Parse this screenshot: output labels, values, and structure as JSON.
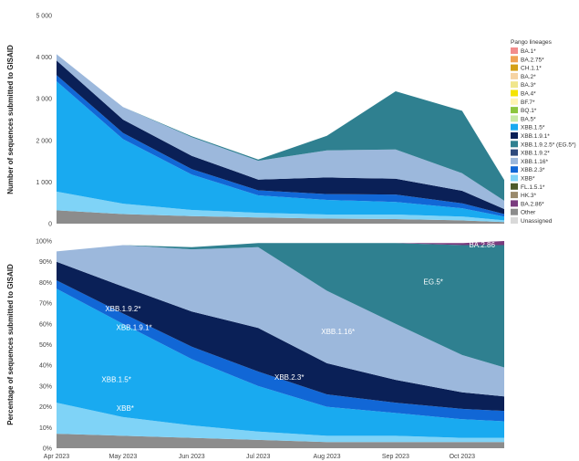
{
  "chart_data": [
    {
      "type": "area",
      "stacked": true,
      "ylabel": "Number of sequences submitted to GISAID",
      "ylim": [
        0,
        5000
      ],
      "yticks": [
        "0",
        "1 000",
        "2 000",
        "3 000",
        "4 000",
        "5 000"
      ],
      "x": [
        0,
        30,
        61,
        91,
        122,
        153,
        183,
        202
      ],
      "series": [
        {
          "name": "Other",
          "values": [
            320,
            230,
            180,
            150,
            120,
            110,
            80,
            40
          ]
        },
        {
          "name": "XBB*",
          "values": [
            450,
            250,
            150,
            110,
            100,
            110,
            90,
            40
          ]
        },
        {
          "name": "XBB.1.5*",
          "values": [
            2650,
            1550,
            850,
            420,
            350,
            300,
            200,
            90
          ]
        },
        {
          "name": "XBB.2.3*",
          "values": [
            150,
            150,
            130,
            120,
            140,
            180,
            120,
            60
          ]
        },
        {
          "name": "XBB.1.9.1*",
          "values": [
            350,
            320,
            320,
            260,
            400,
            380,
            300,
            120
          ]
        },
        {
          "name": "XBB.1.16*",
          "values": [
            150,
            300,
            450,
            450,
            650,
            700,
            420,
            200
          ]
        },
        {
          "name": "EG.5*",
          "values": [
            0,
            0,
            20,
            30,
            350,
            1400,
            1500,
            500
          ]
        }
      ]
    },
    {
      "type": "area",
      "stacked": true,
      "ylabel": "Percentage of sequences submitted to GISAID",
      "ylim": [
        0,
        100
      ],
      "yticks": [
        "0%",
        "10%",
        "20%",
        "30%",
        "40%",
        "50%",
        "60%",
        "70%",
        "80%",
        "90%",
        "100%"
      ],
      "xticks": [
        "Apr 2023",
        "May 2023",
        "Jun 2023",
        "Jul 2023",
        "Aug 2023",
        "Sep 2023",
        "Oct 2023"
      ],
      "x": [
        0,
        30,
        61,
        91,
        122,
        153,
        183,
        202
      ],
      "series": [
        {
          "name": "Other",
          "values": [
            7,
            6,
            5,
            4,
            3,
            3,
            3,
            3
          ]
        },
        {
          "name": "XBB*",
          "values": [
            15,
            9,
            6,
            4,
            3,
            3,
            2,
            2
          ]
        },
        {
          "name": "XBB.1.5*",
          "values": [
            55,
            45,
            32,
            22,
            14,
            11,
            9,
            8
          ]
        },
        {
          "name": "XBB.2.3*",
          "values": [
            4,
            5,
            6,
            7,
            6,
            5,
            5,
            5
          ]
        },
        {
          "name": "XBB.1.9.1*",
          "values": [
            9,
            13,
            17,
            21,
            15,
            11,
            8,
            7
          ]
        },
        {
          "name": "XBB.1.16*",
          "values": [
            5,
            20,
            30,
            39,
            35,
            27,
            18,
            14
          ]
        },
        {
          "name": "EG.5*",
          "values": [
            0,
            0,
            1,
            2,
            23,
            39,
            53,
            59
          ]
        },
        {
          "name": "BA.2.86",
          "values": [
            0,
            0,
            0,
            0,
            0,
            0,
            1,
            2
          ]
        }
      ],
      "annotations": [
        "XBB.1.9.2*",
        "XBB.1.9.1*",
        "XBB.1.16*",
        "EG.5*",
        "XBB.1.5*",
        "XBB.2.3*",
        "XBB*",
        "BA.2.86"
      ]
    }
  ],
  "legend": {
    "title": "Pango lineages",
    "items": [
      {
        "label": "BA.1*",
        "color": "#f28c8c"
      },
      {
        "label": "BA.2.75*",
        "color": "#f0a254"
      },
      {
        "label": "CH.1.1*",
        "color": "#d4a017"
      },
      {
        "label": "BA.2*",
        "color": "#f6d3a3"
      },
      {
        "label": "BA.3*",
        "color": "#f0e68c"
      },
      {
        "label": "BA.4*",
        "color": "#f5e400"
      },
      {
        "label": "BF.7*",
        "color": "#fff4b3"
      },
      {
        "label": "BQ.1*",
        "color": "#8cc63f"
      },
      {
        "label": "BA.5*",
        "color": "#c7e9a6"
      },
      {
        "label": "XBB.1.5*",
        "color": "#19aaf0"
      },
      {
        "label": "XBB.1.9.1*",
        "color": "#0a2057"
      },
      {
        "label": "XBB.1.9.2.5* (EG.5*)",
        "color": "#2f8090"
      },
      {
        "label": "XBB.1.9.2*",
        "color": "#2e4a7d"
      },
      {
        "label": "XBB.1.16*",
        "color": "#9cb8dc"
      },
      {
        "label": "XBB.2.3*",
        "color": "#1167d6"
      },
      {
        "label": "XBB*",
        "color": "#7fd3f7"
      },
      {
        "label": "FL.1.5.1*",
        "color": "#4d5a2a"
      },
      {
        "label": "HK.3*",
        "color": "#9a8a6c"
      },
      {
        "label": "BA.2.86*",
        "color": "#7a3c7e"
      },
      {
        "label": "Other",
        "color": "#8c8c8c"
      },
      {
        "label": "Unassigned",
        "color": "#d9d9d9"
      }
    ]
  },
  "colors": {
    "Other": "#8c8c8c",
    "Unassigned": "#d9d9d9",
    "BA.2*": "#f6d3a3",
    "BA.2.75*": "#f0a254",
    "BF.7*": "#fff4b3",
    "BQ.1*": "#8cc63f",
    "XBB*": "#7fd3f7",
    "XBB.1.5*": "#19aaf0",
    "XBB.2.3*": "#1167d6",
    "XBB.1.9.1*": "#0a2057",
    "XBB.1.9.2*": "#2e4a7d",
    "XBB.1.16*": "#9cb8dc",
    "EG.5*": "#2f8090",
    "BA.2.86": "#7a3c7e"
  }
}
